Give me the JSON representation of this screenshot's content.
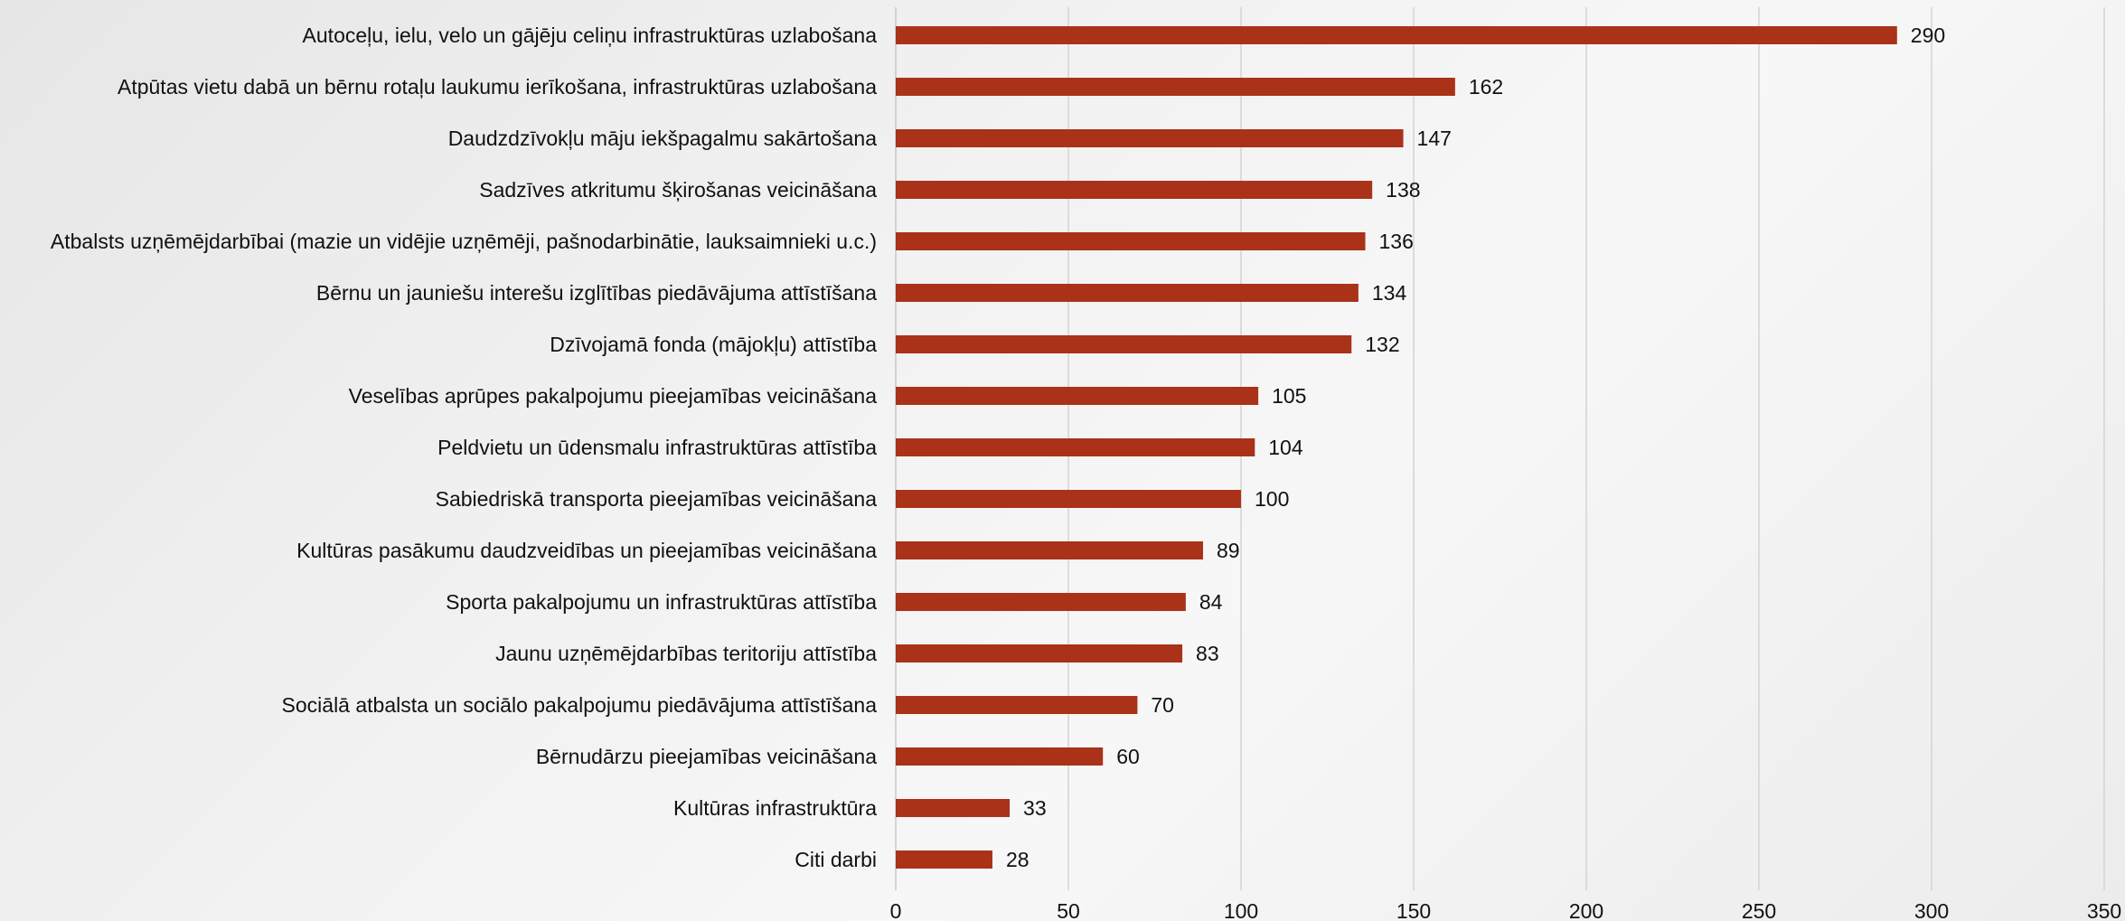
{
  "chart_data": {
    "type": "bar",
    "orientation": "horizontal",
    "title": "",
    "xlabel": "",
    "ylabel": "",
    "categories": [
      "Autoceļu, ielu, velo un gājēju celiņu infrastruktūras uzlabošana",
      "Atpūtas vietu dabā un bērnu rotaļu laukumu ierīkošana, infrastruktūras uzlabošana",
      "Daudzdzīvokļu māju iekšpagalmu sakārtošana",
      "Sadzīves atkritumu šķirošanas veicināšana",
      "Atbalsts uzņēmējdarbībai (mazie un vidējie uzņēmēji, pašnodarbinātie, lauksaimnieki u.c.)",
      "Bērnu un jauniešu interešu izglītības piedāvājuma attīstīšana",
      "Dzīvojamā fonda (mājokļu) attīstība",
      "Veselības aprūpes pakalpojumu pieejamības veicināšana",
      "Peldvietu un ūdensmalu infrastruktūras attīstība",
      "Sabiedriskā transporta pieejamības veicināšana",
      "Kultūras pasākumu daudzveidības un pieejamības veicināšana",
      "Sporta pakalpojumu un infrastruktūras attīstība",
      "Jaunu uzņēmējdarbības teritoriju attīstība",
      "Sociālā atbalsta un sociālo pakalpojumu piedāvājuma attīstīšana",
      "Bērnudārzu pieejamības veicināšana",
      "Kultūras infrastruktūra",
      "Citi darbi"
    ],
    "values": [
      290,
      162,
      147,
      138,
      136,
      134,
      132,
      105,
      104,
      100,
      89,
      84,
      83,
      70,
      60,
      33,
      28
    ],
    "xlim": [
      0,
      350
    ],
    "xticks": [
      0,
      50,
      100,
      150,
      200,
      250,
      300,
      350
    ],
    "grid": true,
    "legend": "none",
    "data_labels": true,
    "bar_color": "#a93218",
    "grid_color": "#d4d4d4"
  }
}
